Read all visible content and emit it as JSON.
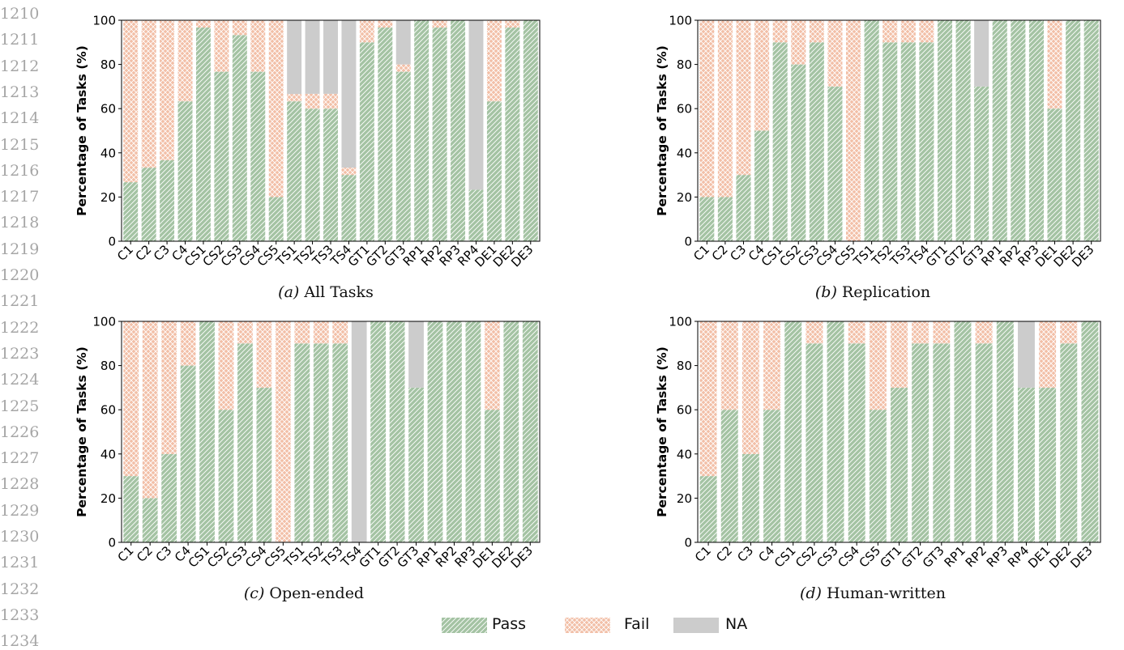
{
  "line_numbers": [
    "1210",
    "1211",
    "1212",
    "1213",
    "1214",
    "1215",
    "1216",
    "1217",
    "1218",
    "1219",
    "1220",
    "1221",
    "1222",
    "1223",
    "1224",
    "1225",
    "1226",
    "1227",
    "1228",
    "1229",
    "1230",
    "1231",
    "1232",
    "1233",
    "1234"
  ],
  "colors": {
    "pass": "#a4c3a3",
    "fail": "#f2bfa7",
    "na": "#cccccc",
    "hatch": "#ffffff",
    "axis": "#000000"
  },
  "legend": [
    {
      "key": "pass",
      "label": "Pass"
    },
    {
      "key": "fail",
      "label": "Fail"
    },
    {
      "key": "na",
      "label": "NA"
    }
  ],
  "chart_data": [
    {
      "type": "bar",
      "stacked": true,
      "caption_letter": "(a)",
      "caption_text": " All Tasks",
      "ylabel": "Percentage of Tasks (%)",
      "ylim": [
        0,
        100
      ],
      "yticks": [
        0,
        20,
        40,
        60,
        80,
        100
      ],
      "categories": [
        "C1",
        "C2",
        "C3",
        "C4",
        "CS1",
        "CS2",
        "CS3",
        "CS4",
        "CS5",
        "TS1",
        "TS2",
        "TS3",
        "TS4",
        "GT1",
        "GT2",
        "GT3",
        "RP1",
        "RP2",
        "RP3",
        "RP4",
        "DE1",
        "DE2",
        "DE3"
      ],
      "series": [
        {
          "name": "Pass",
          "values": [
            26.7,
            33.3,
            36.7,
            63.3,
            96.7,
            76.7,
            93.3,
            76.7,
            20,
            63.3,
            60,
            60,
            30,
            90,
            96.7,
            76.7,
            100,
            96.7,
            100,
            23.3,
            63.3,
            96.7,
            100
          ]
        },
        {
          "name": "Fail",
          "values": [
            73.3,
            66.7,
            63.3,
            36.7,
            3.3,
            23.3,
            6.7,
            23.3,
            80,
            3.3,
            6.7,
            6.7,
            3.3,
            10,
            3.3,
            3.3,
            0,
            3.3,
            0,
            0,
            36.7,
            3.3,
            0
          ]
        },
        {
          "name": "NA",
          "values": [
            0,
            0,
            0,
            0,
            0,
            0,
            0,
            0,
            0,
            33.4,
            33.3,
            33.3,
            66.7,
            0,
            0,
            20,
            0,
            0,
            0,
            76.7,
            0,
            0,
            0
          ]
        }
      ]
    },
    {
      "type": "bar",
      "stacked": true,
      "caption_letter": "(b)",
      "caption_text": " Replication",
      "ylabel": "Percentage of Tasks (%)",
      "ylim": [
        0,
        100
      ],
      "yticks": [
        0,
        20,
        40,
        60,
        80,
        100
      ],
      "categories": [
        "C1",
        "C2",
        "C3",
        "C4",
        "CS1",
        "CS2",
        "CS3",
        "CS4",
        "CS5",
        "TS1",
        "TS2",
        "TS3",
        "TS4",
        "GT1",
        "GT2",
        "GT3",
        "RP1",
        "RP2",
        "RP3",
        "DE1",
        "DE2",
        "DE3"
      ],
      "series": [
        {
          "name": "Pass",
          "values": [
            20,
            20,
            30,
            50,
            90,
            80,
            90,
            70,
            0,
            100,
            90,
            90,
            90,
            100,
            100,
            70,
            100,
            100,
            100,
            60,
            100,
            100
          ]
        },
        {
          "name": "Fail",
          "values": [
            80,
            80,
            70,
            50,
            10,
            20,
            10,
            30,
            100,
            0,
            10,
            10,
            10,
            0,
            0,
            0,
            0,
            0,
            0,
            40,
            0,
            0
          ]
        },
        {
          "name": "NA",
          "values": [
            0,
            0,
            0,
            0,
            0,
            0,
            0,
            0,
            0,
            0,
            0,
            0,
            0,
            0,
            0,
            30,
            0,
            0,
            0,
            0,
            0,
            0
          ]
        }
      ]
    },
    {
      "type": "bar",
      "stacked": true,
      "caption_letter": "(c)",
      "caption_text": " Open-ended",
      "ylabel": "Percentage of Tasks (%)",
      "ylim": [
        0,
        100
      ],
      "yticks": [
        0,
        20,
        40,
        60,
        80,
        100
      ],
      "categories": [
        "C1",
        "C2",
        "C3",
        "C4",
        "CS1",
        "CS2",
        "CS3",
        "CS4",
        "CS5",
        "TS1",
        "TS2",
        "TS3",
        "TS4",
        "GT1",
        "GT2",
        "GT3",
        "RP1",
        "RP2",
        "RP3",
        "DE1",
        "DE2",
        "DE3"
      ],
      "series": [
        {
          "name": "Pass",
          "values": [
            30,
            20,
            40,
            80,
            100,
            60,
            90,
            70,
            0,
            90,
            90,
            90,
            0,
            100,
            100,
            70,
            100,
            100,
            100,
            60,
            100,
            100
          ]
        },
        {
          "name": "Fail",
          "values": [
            70,
            80,
            60,
            20,
            0,
            40,
            10,
            30,
            100,
            10,
            10,
            10,
            0,
            0,
            0,
            0,
            0,
            0,
            0,
            40,
            0,
            0
          ]
        },
        {
          "name": "NA",
          "values": [
            0,
            0,
            0,
            0,
            0,
            0,
            0,
            0,
            0,
            0,
            0,
            0,
            100,
            0,
            0,
            30,
            0,
            0,
            0,
            0,
            0,
            0
          ]
        }
      ]
    },
    {
      "type": "bar",
      "stacked": true,
      "caption_letter": "(d)",
      "caption_text": " Human-written",
      "ylabel": "Percentage of Tasks (%)",
      "ylim": [
        0,
        100
      ],
      "yticks": [
        0,
        20,
        40,
        60,
        80,
        100
      ],
      "categories": [
        "C1",
        "C2",
        "C3",
        "C4",
        "CS1",
        "CS2",
        "CS3",
        "CS4",
        "CS5",
        "GT1",
        "GT2",
        "GT3",
        "RP1",
        "RP2",
        "RP3",
        "RP4",
        "DE1",
        "DE2",
        "DE3"
      ],
      "series": [
        {
          "name": "Pass",
          "values": [
            30,
            60,
            40,
            60,
            100,
            90,
            100,
            90,
            60,
            70,
            90,
            90,
            100,
            90,
            100,
            70,
            70,
            90,
            100
          ]
        },
        {
          "name": "Fail",
          "values": [
            70,
            40,
            60,
            40,
            0,
            10,
            0,
            10,
            40,
            30,
            10,
            10,
            0,
            10,
            0,
            0,
            30,
            10,
            0
          ]
        },
        {
          "name": "NA",
          "values": [
            0,
            0,
            0,
            0,
            0,
            0,
            0,
            0,
            0,
            0,
            0,
            0,
            0,
            0,
            0,
            30,
            0,
            0,
            0
          ]
        }
      ]
    }
  ]
}
